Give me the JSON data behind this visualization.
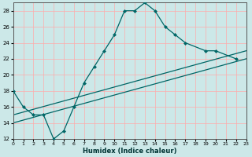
{
  "xlabel": "Humidex (Indice chaleur)",
  "bg_color": "#cce8e8",
  "grid_color": "#ffaaaa",
  "line_color": "#006666",
  "xlim": [
    0,
    23
  ],
  "ylim": [
    12,
    29
  ],
  "xticks": [
    0,
    1,
    2,
    3,
    4,
    5,
    6,
    7,
    8,
    9,
    10,
    11,
    12,
    13,
    14,
    15,
    16,
    17,
    18,
    19,
    20,
    21,
    22,
    23
  ],
  "yticks": [
    12,
    14,
    16,
    18,
    20,
    22,
    24,
    26,
    28
  ],
  "curve1_x": [
    0,
    1,
    2,
    3,
    4,
    5,
    6,
    7,
    8,
    9,
    10,
    11,
    12,
    13,
    14,
    15,
    16,
    17,
    19,
    20,
    22
  ],
  "curve1_y": [
    18,
    16,
    15,
    15,
    12,
    13,
    16,
    19,
    21,
    23,
    25,
    28,
    28,
    29,
    28,
    26,
    25,
    24,
    23,
    23,
    22
  ],
  "curve2_x": [
    0,
    23
  ],
  "curve2_y": [
    14,
    22
  ],
  "curve3_x": [
    0,
    23
  ],
  "curve3_y": [
    15,
    23
  ]
}
